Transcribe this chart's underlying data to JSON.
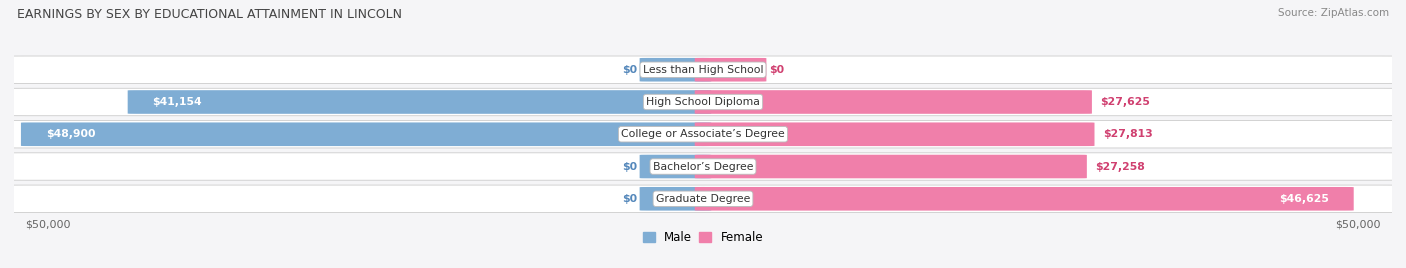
{
  "title": "EARNINGS BY SEX BY EDUCATIONAL ATTAINMENT IN LINCOLN",
  "source": "Source: ZipAtlas.com",
  "categories": [
    "Less than High School",
    "High School Diploma",
    "College or Associate’s Degree",
    "Bachelor’s Degree",
    "Graduate Degree"
  ],
  "male_values": [
    0,
    41154,
    48900,
    0,
    0
  ],
  "female_values": [
    0,
    27625,
    27813,
    27258,
    46625
  ],
  "male_labels": [
    "$0",
    "$41,154",
    "$48,900",
    "$0",
    "$0"
  ],
  "female_labels": [
    "$0",
    "$27,625",
    "$27,813",
    "$27,258",
    "$46,625"
  ],
  "max_value": 50000,
  "male_color": "#7fadd4",
  "female_color": "#f07faa",
  "male_label_dark": "#5588bb",
  "female_label_dark": "#d04070",
  "row_bg_color": "#f0f0f4",
  "row_border_color": "#cccccc",
  "title_color": "#444444",
  "source_color": "#888888",
  "axis_label_color": "#666666",
  "bg_color": "#f5f5f7",
  "legend_male": "#7fadd4",
  "legend_female": "#f07faa",
  "label_fontsize": 7.8,
  "cat_fontsize": 7.8
}
